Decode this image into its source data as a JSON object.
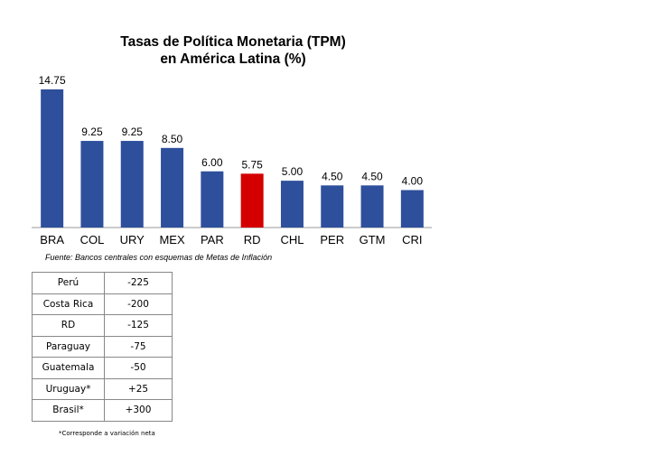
{
  "chart_data": {
    "type": "bar",
    "title_lines": [
      "Tasas de Política Monetaria (TPM)",
      "en América Latina (%)"
    ],
    "categories": [
      "BRA",
      "COL",
      "URY",
      "MEX",
      "PAR",
      "RD",
      "CHL",
      "PER",
      "GTM",
      "CRI"
    ],
    "values": [
      14.75,
      9.25,
      9.25,
      8.5,
      6.0,
      5.75,
      5.0,
      4.5,
      4.5,
      4.0
    ],
    "value_labels": [
      "14.75",
      "9.25",
      "9.25",
      "8.50",
      "6.00",
      "5.75",
      "5.00",
      "4.50",
      "4.50",
      "4.00"
    ],
    "ylim": [
      0,
      15
    ],
    "grid": false,
    "colors": {
      "default": "#2e4f9c",
      "highlight": "#d40000"
    },
    "highlight_category": "RD"
  },
  "source_note": "Fuente: Bancos centrales con esquemas de Metas de Inflación",
  "table": {
    "rows": [
      {
        "country": "Perú",
        "change": "-225"
      },
      {
        "country": "Costa Rica",
        "change": "-200"
      },
      {
        "country": "RD",
        "change": "-125"
      },
      {
        "country": "Paraguay",
        "change": "-75"
      },
      {
        "country": "Guatemala",
        "change": "-50"
      },
      {
        "country": "Uruguay*",
        "change": "+25"
      },
      {
        "country": "Brasil*",
        "change": "+300"
      }
    ],
    "footnote": "*Corresponde a variación neta"
  }
}
